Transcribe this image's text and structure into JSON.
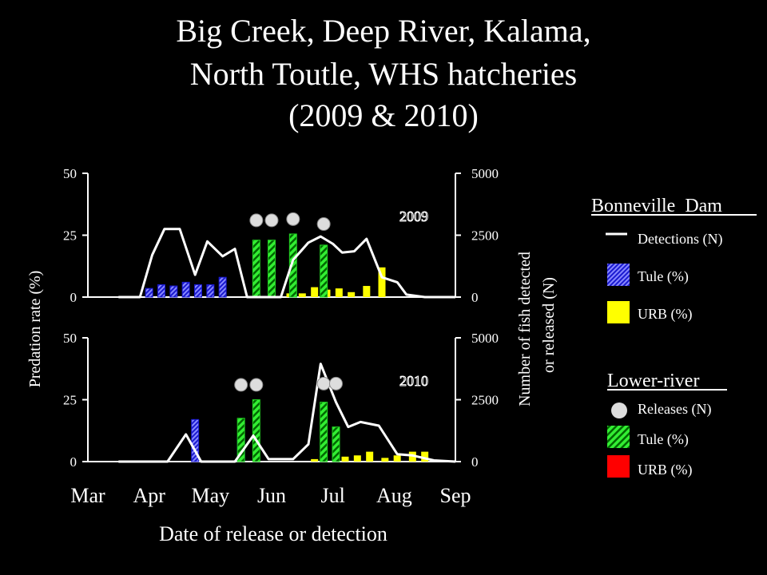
{
  "title_lines": [
    "Big Creek, Deep River, Kalama,",
    "North Toutle, WHS hatcheries",
    "(2009 & 2010)"
  ],
  "colors": {
    "background": "#000000",
    "foreground": "#ffffff",
    "tule_bonneville": "#2222dd",
    "urb_bonneville": "#ffff00",
    "tule_lower": "#22cc22",
    "urb_lower": "#ff0000",
    "releases": "#dddddd"
  },
  "legend": {
    "bonneville_heading": "Bonneville  Dam",
    "detections_label": "Detections (N)",
    "tule_label": "Tule (%)",
    "urb_label": "URB (%)",
    "lower_heading": "Lower-river",
    "releases_label": "Releases (N)",
    "lower_tule_label": "Tule (%)",
    "lower_urb_label": "URB (%)"
  },
  "chart_data": {
    "type": "bar",
    "xlabel": "Date of release or detection",
    "ylabel_left": "Predation rate (%)",
    "ylabel_right_lines": [
      "Number of fish detected",
      "or released (N)"
    ],
    "x_ticks": [
      "Mar",
      "Apr",
      "May",
      "Jun",
      "Jul",
      "Aug",
      "Sep"
    ],
    "x_range": [
      0,
      6
    ],
    "ylim_left": [
      0,
      50
    ],
    "ylim_right": [
      0,
      5000
    ],
    "y_ticks_left": [
      "0",
      "25",
      "50"
    ],
    "y_ticks_right": [
      "0",
      "2500",
      "5000"
    ],
    "panels": [
      {
        "year_label": "2009",
        "detections_line": [
          [
            0.5,
            0
          ],
          [
            0.85,
            0
          ],
          [
            1.05,
            1700
          ],
          [
            1.25,
            2750
          ],
          [
            1.5,
            2750
          ],
          [
            1.75,
            900
          ],
          [
            1.95,
            2250
          ],
          [
            2.2,
            1650
          ],
          [
            2.4,
            1950
          ],
          [
            2.6,
            0
          ],
          [
            3.15,
            0
          ],
          [
            3.35,
            1500
          ],
          [
            3.6,
            2200
          ],
          [
            3.8,
            2450
          ],
          [
            4.0,
            2150
          ],
          [
            4.15,
            1800
          ],
          [
            4.35,
            1850
          ],
          [
            4.55,
            2350
          ],
          [
            4.8,
            800
          ],
          [
            5.05,
            600
          ],
          [
            5.2,
            100
          ],
          [
            5.5,
            0
          ],
          [
            5.85,
            0
          ],
          [
            6.0,
            0
          ]
        ],
        "tule_bonneville": [
          [
            1.0,
            3.5
          ],
          [
            1.2,
            5
          ],
          [
            1.4,
            4.5
          ],
          [
            1.6,
            6
          ],
          [
            1.8,
            5
          ],
          [
            2.0,
            5
          ],
          [
            2.2,
            8
          ]
        ],
        "urb_bonneville": [
          [
            3.3,
            1.5
          ],
          [
            3.5,
            1.5
          ],
          [
            3.7,
            4
          ],
          [
            3.9,
            3
          ],
          [
            4.1,
            3.5
          ],
          [
            4.3,
            2
          ],
          [
            4.55,
            4.5
          ],
          [
            4.8,
            12
          ]
        ],
        "tule_lower": [
          [
            2.75,
            23
          ],
          [
            3.0,
            23
          ],
          [
            3.35,
            25.5
          ],
          [
            3.85,
            21
          ]
        ],
        "urb_lower": [],
        "releases": [
          [
            2.75,
            3100
          ],
          [
            3.0,
            3100
          ],
          [
            3.35,
            3150
          ],
          [
            3.85,
            2950
          ]
        ]
      },
      {
        "year_label": "2010",
        "detections_line": [
          [
            0.5,
            0
          ],
          [
            1.3,
            0
          ],
          [
            1.6,
            1100
          ],
          [
            1.85,
            0
          ],
          [
            2.4,
            0
          ],
          [
            2.7,
            1050
          ],
          [
            2.95,
            100
          ],
          [
            3.35,
            100
          ],
          [
            3.6,
            700
          ],
          [
            3.8,
            3950
          ],
          [
            4.05,
            2400
          ],
          [
            4.25,
            1400
          ],
          [
            4.45,
            1600
          ],
          [
            4.75,
            1450
          ],
          [
            5.05,
            300
          ],
          [
            5.3,
            250
          ],
          [
            5.65,
            50
          ],
          [
            6.0,
            0
          ]
        ],
        "tule_bonneville": [
          [
            1.75,
            17
          ],
          [
            2.5,
            10
          ]
        ],
        "urb_bonneville": [
          [
            3.7,
            1
          ],
          [
            4.2,
            2
          ],
          [
            4.4,
            2.5
          ],
          [
            4.6,
            4
          ],
          [
            4.85,
            1.5
          ],
          [
            5.05,
            2.5
          ],
          [
            5.3,
            4
          ],
          [
            5.5,
            4
          ]
        ],
        "tule_lower": [
          [
            2.5,
            17.5
          ],
          [
            2.75,
            25
          ],
          [
            3.85,
            24
          ],
          [
            4.05,
            14
          ]
        ],
        "urb_lower": [],
        "releases": [
          [
            2.5,
            3100
          ],
          [
            2.75,
            3100
          ],
          [
            3.85,
            3150
          ],
          [
            4.05,
            3150
          ]
        ]
      }
    ]
  }
}
